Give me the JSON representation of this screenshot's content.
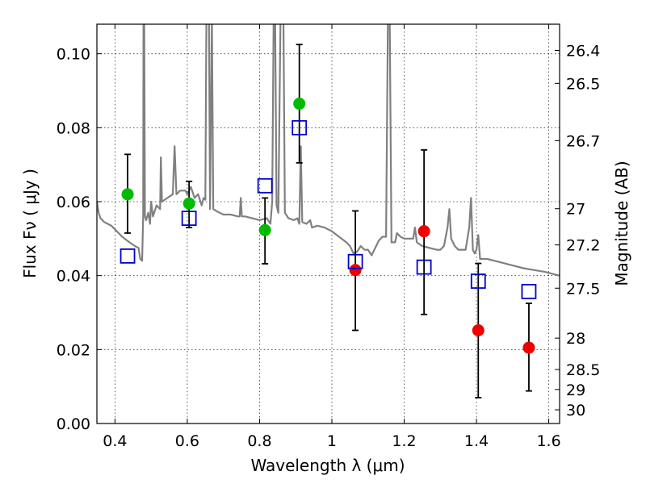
{
  "chart_data": {
    "type": "scatter",
    "xlabel": "Wavelength  λ (μm)",
    "ylabel": "Flux  Fν  ( μJy )",
    "y2label": "Magnitude (AB)",
    "xlim": [
      0.35,
      1.63
    ],
    "ylim": [
      0.0,
      0.108
    ],
    "grid": true,
    "x_ticks": [
      0.4,
      0.6,
      0.8,
      1.0,
      1.2,
      1.4,
      1.6
    ],
    "x_tick_labels": [
      "0.4",
      "0.6",
      "0.8",
      "1",
      "1.2",
      "1.4",
      "1.6"
    ],
    "y_ticks": [
      0.0,
      0.02,
      0.04,
      0.06,
      0.08,
      0.1
    ],
    "y_tick_labels": [
      "0.00",
      "0.02",
      "0.04",
      "0.06",
      "0.08",
      "0.10"
    ],
    "y2_ticks": [
      {
        "label": "26.4",
        "flux": 0.1009
      },
      {
        "label": "26.5",
        "flux": 0.092
      },
      {
        "label": "26.7",
        "flux": 0.0765
      },
      {
        "label": "27",
        "flux": 0.0581
      },
      {
        "label": "27.2",
        "flux": 0.0483
      },
      {
        "label": "27.5",
        "flux": 0.0366
      },
      {
        "label": "28",
        "flux": 0.0231
      },
      {
        "label": "28.5",
        "flux": 0.0146
      },
      {
        "label": "29",
        "flux": 0.0092
      },
      {
        "label": "30",
        "flux": 0.0037
      }
    ],
    "series": [
      {
        "marker": "circle",
        "color": "#00bb00",
        "points": [
          {
            "x": 0.435,
            "y": 0.062,
            "ylo": 0.0515,
            "yhi": 0.0728
          },
          {
            "x": 0.605,
            "y": 0.0595,
            "ylo": 0.053,
            "yhi": 0.0655
          },
          {
            "x": 0.815,
            "y": 0.0523,
            "ylo": 0.0432,
            "yhi": 0.061
          },
          {
            "x": 0.91,
            "y": 0.0865,
            "ylo": 0.0705,
            "yhi": 0.1025
          }
        ]
      },
      {
        "marker": "circle",
        "color": "#ee0000",
        "points": [
          {
            "x": 1.065,
            "y": 0.0415,
            "ylo": 0.0252,
            "yhi": 0.0575
          },
          {
            "x": 1.255,
            "y": 0.052,
            "ylo": 0.0295,
            "yhi": 0.074
          },
          {
            "x": 1.405,
            "y": 0.0252,
            "ylo": 0.007,
            "yhi": 0.0433
          },
          {
            "x": 1.545,
            "y": 0.0205,
            "ylo": 0.0088,
            "yhi": 0.0325
          }
        ]
      },
      {
        "marker": "square",
        "color": "#0000cc",
        "points": [
          {
            "x": 0.435,
            "y": 0.0453
          },
          {
            "x": 0.605,
            "y": 0.0555
          },
          {
            "x": 0.815,
            "y": 0.0643
          },
          {
            "x": 0.91,
            "y": 0.08
          },
          {
            "x": 1.065,
            "y": 0.0438
          },
          {
            "x": 1.255,
            "y": 0.0423
          },
          {
            "x": 1.405,
            "y": 0.0385
          },
          {
            "x": 1.545,
            "y": 0.0357
          }
        ]
      }
    ],
    "spectrum": {
      "color": "#808080",
      "points": [
        [
          0.35,
          0.06
        ],
        [
          0.355,
          0.057
        ],
        [
          0.36,
          0.0555
        ],
        [
          0.37,
          0.0545
        ],
        [
          0.38,
          0.054
        ],
        [
          0.39,
          0.0535
        ],
        [
          0.4,
          0.0525
        ],
        [
          0.42,
          0.0505
        ],
        [
          0.44,
          0.049
        ],
        [
          0.455,
          0.048
        ],
        [
          0.465,
          0.0475
        ],
        [
          0.47,
          0.0445
        ],
        [
          0.475,
          0.044
        ],
        [
          0.478,
          0.056
        ],
        [
          0.479,
          0.11
        ],
        [
          0.481,
          0.11
        ],
        [
          0.483,
          0.056
        ],
        [
          0.486,
          0.055
        ],
        [
          0.492,
          0.057
        ],
        [
          0.497,
          0.054
        ],
        [
          0.5,
          0.06
        ],
        [
          0.505,
          0.056
        ],
        [
          0.515,
          0.059
        ],
        [
          0.525,
          0.058
        ],
        [
          0.527,
          0.072
        ],
        [
          0.53,
          0.06
        ],
        [
          0.545,
          0.061
        ],
        [
          0.56,
          0.062
        ],
        [
          0.565,
          0.075
        ],
        [
          0.57,
          0.062
        ],
        [
          0.58,
          0.063
        ],
        [
          0.595,
          0.063
        ],
        [
          0.6,
          0.062
        ],
        [
          0.61,
          0.064
        ],
        [
          0.62,
          0.061
        ],
        [
          0.63,
          0.062
        ],
        [
          0.64,
          0.059
        ],
        [
          0.645,
          0.061
        ],
        [
          0.65,
          0.0605
        ],
        [
          0.653,
          0.11
        ],
        [
          0.655,
          0.11
        ],
        [
          0.657,
          0.11
        ],
        [
          0.66,
          0.11
        ],
        [
          0.663,
          0.058
        ],
        [
          0.668,
          0.11
        ],
        [
          0.672,
          0.058
        ],
        [
          0.68,
          0.0575
        ],
        [
          0.69,
          0.057
        ],
        [
          0.7,
          0.0565
        ],
        [
          0.72,
          0.0565
        ],
        [
          0.74,
          0.056
        ],
        [
          0.745,
          0.056
        ],
        [
          0.748,
          0.061
        ],
        [
          0.751,
          0.056
        ],
        [
          0.76,
          0.056
        ],
        [
          0.78,
          0.0555
        ],
        [
          0.8,
          0.055
        ],
        [
          0.82,
          0.0555
        ],
        [
          0.83,
          0.054
        ],
        [
          0.835,
          0.06
        ],
        [
          0.839,
          0.11
        ],
        [
          0.843,
          0.11
        ],
        [
          0.847,
          0.059
        ],
        [
          0.852,
          0.057
        ],
        [
          0.858,
          0.11
        ],
        [
          0.862,
          0.11
        ],
        [
          0.866,
          0.11
        ],
        [
          0.87,
          0.057
        ],
        [
          0.88,
          0.0555
        ],
        [
          0.895,
          0.055
        ],
        [
          0.905,
          0.0555
        ],
        [
          0.91,
          0.054
        ],
        [
          0.914,
          0.075
        ],
        [
          0.918,
          0.0545
        ],
        [
          0.93,
          0.054
        ],
        [
          0.94,
          0.055
        ],
        [
          0.945,
          0.053
        ],
        [
          0.96,
          0.0535
        ],
        [
          0.98,
          0.053
        ],
        [
          1.0,
          0.052
        ],
        [
          1.02,
          0.0505
        ],
        [
          1.04,
          0.049
        ],
        [
          1.05,
          0.048
        ],
        [
          1.06,
          0.046
        ],
        [
          1.07,
          0.0465
        ],
        [
          1.08,
          0.048
        ],
        [
          1.09,
          0.047
        ],
        [
          1.1,
          0.047
        ],
        [
          1.11,
          0.0455
        ],
        [
          1.12,
          0.0475
        ],
        [
          1.13,
          0.0495
        ],
        [
          1.14,
          0.0505
        ],
        [
          1.15,
          0.0505
        ],
        [
          1.155,
          0.11
        ],
        [
          1.16,
          0.11
        ],
        [
          1.165,
          0.049
        ],
        [
          1.175,
          0.049
        ],
        [
          1.18,
          0.0515
        ],
        [
          1.19,
          0.0505
        ],
        [
          1.2,
          0.05
        ],
        [
          1.21,
          0.05
        ],
        [
          1.225,
          0.05
        ],
        [
          1.23,
          0.053
        ],
        [
          1.235,
          0.049
        ],
        [
          1.25,
          0.048
        ],
        [
          1.27,
          0.0475
        ],
        [
          1.29,
          0.047
        ],
        [
          1.3,
          0.047
        ],
        [
          1.31,
          0.048
        ],
        [
          1.32,
          0.053
        ],
        [
          1.325,
          0.058
        ],
        [
          1.33,
          0.05
        ],
        [
          1.34,
          0.048
        ],
        [
          1.35,
          0.047
        ],
        [
          1.37,
          0.047
        ],
        [
          1.38,
          0.053
        ],
        [
          1.385,
          0.061
        ],
        [
          1.39,
          0.047
        ],
        [
          1.395,
          0.046
        ],
        [
          1.4,
          0.047
        ],
        [
          1.405,
          0.051
        ],
        [
          1.41,
          0.0445
        ],
        [
          1.43,
          0.0445
        ],
        [
          1.45,
          0.044
        ],
        [
          1.47,
          0.0435
        ],
        [
          1.49,
          0.043
        ],
        [
          1.51,
          0.0425
        ],
        [
          1.53,
          0.042
        ],
        [
          1.56,
          0.0415
        ],
        [
          1.59,
          0.041
        ],
        [
          1.61,
          0.0405
        ],
        [
          1.63,
          0.04
        ]
      ]
    }
  }
}
